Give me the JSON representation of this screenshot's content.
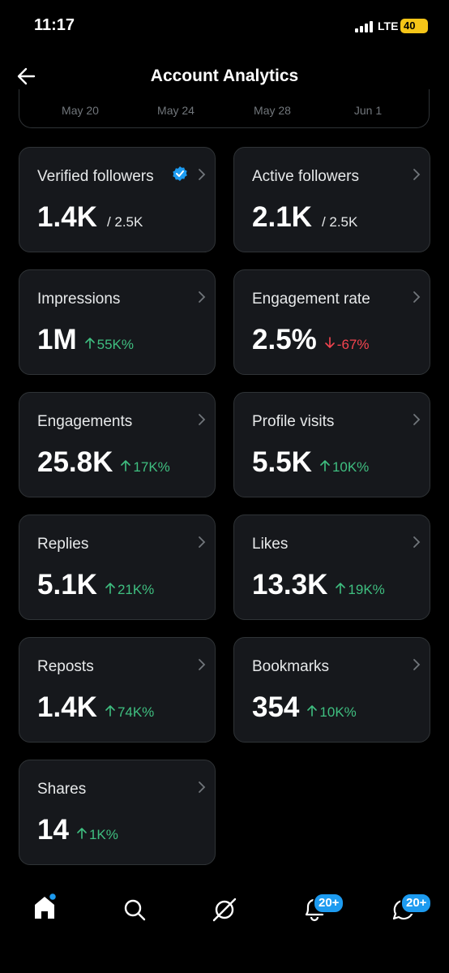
{
  "status_bar": {
    "time": "11:17",
    "network": "LTE",
    "battery": "40"
  },
  "header": {
    "title": "Account Analytics"
  },
  "chart_axis": {
    "labels": [
      "May 20",
      "May 24",
      "May 28",
      "Jun 1"
    ]
  },
  "cards": [
    {
      "label": "Verified followers",
      "value": "1.4K",
      "total": "/ 2.5K",
      "verified": true
    },
    {
      "label": "Active followers",
      "value": "2.1K",
      "total": "/ 2.5K"
    },
    {
      "label": "Impressions",
      "value": "1M",
      "change": "55K%",
      "direction": "up"
    },
    {
      "label": "Engagement rate",
      "value": "2.5%",
      "change": "-67%",
      "direction": "down"
    },
    {
      "label": "Engagements",
      "value": "25.8K",
      "change": "17K%",
      "direction": "up"
    },
    {
      "label": "Profile visits",
      "value": "5.5K",
      "change": "10K%",
      "direction": "up"
    },
    {
      "label": "Replies",
      "value": "5.1K",
      "change": "21K%",
      "direction": "up"
    },
    {
      "label": "Likes",
      "value": "13.3K",
      "change": "19K%",
      "direction": "up"
    },
    {
      "label": "Reposts",
      "value": "1.4K",
      "change": "74K%",
      "direction": "up"
    },
    {
      "label": "Bookmarks",
      "value": "354",
      "change": "10K%",
      "direction": "up"
    },
    {
      "label": "Shares",
      "value": "14",
      "change": "1K%",
      "direction": "up"
    }
  ],
  "nav": {
    "notifications_badge": "20+",
    "messages_badge": "20+"
  }
}
